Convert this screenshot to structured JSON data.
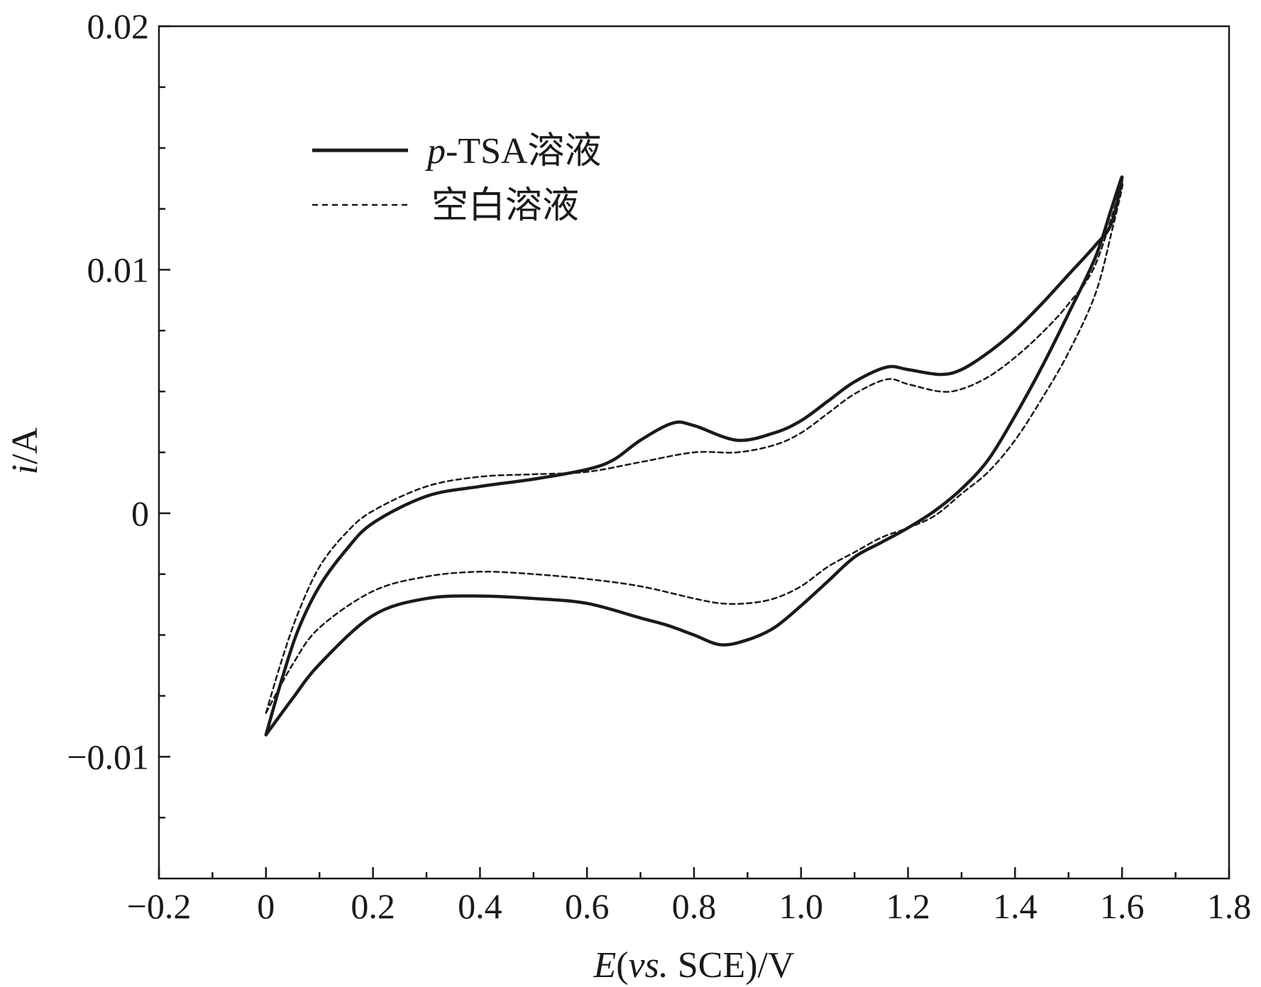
{
  "chart_data": {
    "type": "line",
    "title": "",
    "xlabel": {
      "italic": "E",
      "open": "(",
      "italic_vs": "vs.",
      "rest": " SCE)/V"
    },
    "ylabel": {
      "italic": "i",
      "rest": "/A"
    },
    "xlim": [
      -0.2,
      1.8
    ],
    "ylim": [
      -0.015,
      0.02
    ],
    "x_ticks": [
      -0.2,
      0,
      0.2,
      0.4,
      0.6,
      0.8,
      1.0,
      1.2,
      1.4,
      1.6,
      1.8
    ],
    "x_tick_labels": [
      "−0.2",
      "0",
      "0.2",
      "0.4",
      "0.6",
      "0.8",
      "1.0",
      "1.2",
      "1.4",
      "1.6",
      "1.8"
    ],
    "y_ticks": [
      -0.01,
      0,
      0.01,
      0.02
    ],
    "y_tick_labels": [
      "−0.01",
      "0",
      "0.01",
      "0.02"
    ],
    "y_minor_ticks": [
      -0.0125,
      -0.0075,
      -0.005,
      -0.0025,
      0.0025,
      0.005,
      0.0075,
      0.0125,
      0.015,
      0.0175
    ],
    "x_minor_ticks": [
      -0.1,
      0.1,
      0.3,
      0.5,
      0.7,
      0.9,
      1.1,
      1.3,
      1.5,
      1.7
    ],
    "grid": false,
    "legend": {
      "position": "top-left",
      "entries": [
        {
          "italic": "p",
          "label": "-TSA溶液",
          "style": "solid"
        },
        {
          "italic": "",
          "label": "空白溶液",
          "style": "dashed"
        }
      ]
    },
    "series": [
      {
        "name": "p-TSA溶液",
        "style": "solid",
        "color": "#1a1a1a",
        "x": [
          0,
          0.03,
          0.06,
          0.1,
          0.15,
          0.2,
          0.3,
          0.4,
          0.5,
          0.6,
          0.65,
          0.7,
          0.76,
          0.8,
          0.88,
          0.95,
          1.0,
          1.05,
          1.1,
          1.16,
          1.2,
          1.26,
          1.3,
          1.35,
          1.4,
          1.45,
          1.5,
          1.55,
          1.58,
          1.6,
          1.58,
          1.55,
          1.5,
          1.45,
          1.4,
          1.35,
          1.3,
          1.25,
          1.2,
          1.15,
          1.1,
          1.05,
          1.0,
          0.95,
          0.9,
          0.85,
          0.8,
          0.75,
          0.7,
          0.6,
          0.5,
          0.4,
          0.3,
          0.2,
          0.1,
          0.05,
          0
        ],
        "y": [
          -0.0091,
          -0.0068,
          -0.0048,
          -0.003,
          -0.0015,
          -0.0004,
          0.0007,
          0.0011,
          0.0014,
          0.0018,
          0.0022,
          0.003,
          0.0037,
          0.0036,
          0.003,
          0.0033,
          0.0038,
          0.0046,
          0.0054,
          0.006,
          0.0059,
          0.0057,
          0.0059,
          0.0066,
          0.0075,
          0.0086,
          0.0098,
          0.011,
          0.0119,
          0.0138,
          0.0125,
          0.0105,
          0.0082,
          0.006,
          0.004,
          0.0022,
          0.001,
          0.0001,
          -0.0006,
          -0.0012,
          -0.0018,
          -0.0028,
          -0.0038,
          -0.0047,
          -0.0052,
          -0.0054,
          -0.005,
          -0.0046,
          -0.0043,
          -0.0037,
          -0.0035,
          -0.0034,
          -0.0035,
          -0.0042,
          -0.0062,
          -0.0076,
          -0.0091
        ]
      },
      {
        "name": "空白溶液",
        "style": "dashed",
        "color": "#1a1a1a",
        "x": [
          0,
          0.03,
          0.06,
          0.1,
          0.15,
          0.2,
          0.3,
          0.4,
          0.5,
          0.6,
          0.7,
          0.8,
          0.88,
          0.95,
          1.0,
          1.05,
          1.1,
          1.16,
          1.2,
          1.26,
          1.3,
          1.35,
          1.4,
          1.45,
          1.5,
          1.55,
          1.6,
          1.58,
          1.55,
          1.5,
          1.45,
          1.4,
          1.35,
          1.3,
          1.25,
          1.2,
          1.15,
          1.1,
          1.05,
          1.0,
          0.95,
          0.9,
          0.85,
          0.8,
          0.7,
          0.6,
          0.5,
          0.4,
          0.3,
          0.2,
          0.1,
          0.05,
          0
        ],
        "y": [
          -0.0082,
          -0.006,
          -0.0041,
          -0.0022,
          -0.0008,
          0.0001,
          0.0011,
          0.0015,
          0.0016,
          0.0017,
          0.0021,
          0.0025,
          0.0025,
          0.0028,
          0.0033,
          0.0041,
          0.0049,
          0.0055,
          0.0053,
          0.005,
          0.0051,
          0.0056,
          0.0064,
          0.0074,
          0.0086,
          0.0102,
          0.0135,
          0.0115,
          0.009,
          0.0066,
          0.0047,
          0.003,
          0.0017,
          0.0008,
          -0.0001,
          -0.0006,
          -0.001,
          -0.0016,
          -0.0022,
          -0.003,
          -0.0035,
          -0.0037,
          -0.0037,
          -0.0035,
          -0.003,
          -0.0027,
          -0.0025,
          -0.0024,
          -0.0026,
          -0.0032,
          -0.0047,
          -0.0062,
          -0.0082
        ]
      }
    ]
  }
}
